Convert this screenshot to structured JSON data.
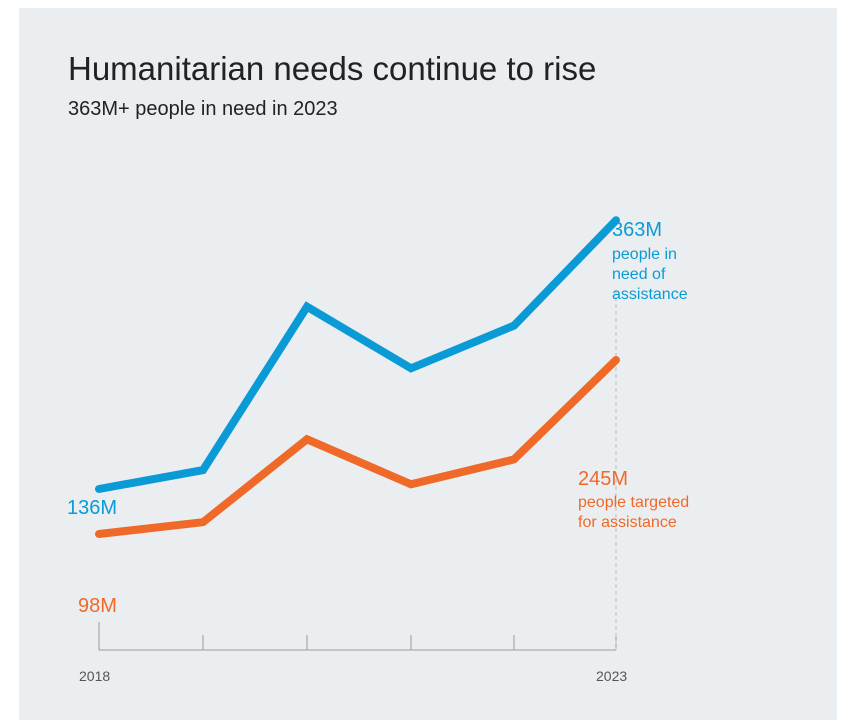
{
  "title": "Humanitarian needs continue to rise",
  "subtitle": "363M+ people in need in 2023",
  "colors": {
    "need": "#0a9bd6",
    "targeted": "#ef6a28",
    "axis": "#9a9a9a",
    "text": "#222222"
  },
  "chart_data": {
    "type": "line",
    "x": [
      2018,
      2019,
      2020,
      2021,
      2022,
      2023
    ],
    "tick_labels": [
      "2018",
      "",
      "",
      "",
      "",
      "2023"
    ],
    "series": [
      {
        "name": "people in need of assistance",
        "values": [
          136,
          152,
          290,
          238,
          274,
          363
        ],
        "end_label": "363M",
        "end_note": [
          "people in",
          "need of",
          "assistance"
        ],
        "start_label": "136M"
      },
      {
        "name": "people targeted for assistance",
        "values": [
          98,
          108,
          178,
          140,
          161,
          245
        ],
        "end_label": "245M",
        "end_note": [
          "people targeted",
          "for assistance"
        ],
        "start_label": "98M"
      }
    ]
  }
}
